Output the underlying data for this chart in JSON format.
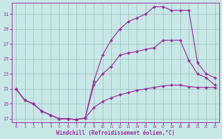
{
  "xlabel": "Windchill (Refroidissement éolien,°C)",
  "bg_color": "#c8e8e8",
  "line_color": "#993399",
  "grid_color": "#99bbbb",
  "xlim": [
    -0.5,
    23.5
  ],
  "ylim": [
    16.5,
    32.5
  ],
  "xticks": [
    0,
    1,
    2,
    3,
    4,
    5,
    6,
    7,
    8,
    9,
    10,
    11,
    12,
    13,
    14,
    15,
    16,
    17,
    18,
    19,
    20,
    21,
    22,
    23
  ],
  "yticks": [
    17,
    19,
    21,
    23,
    25,
    27,
    29,
    31
  ],
  "curve_bottom_x": [
    0,
    1,
    2,
    3,
    4,
    5,
    6,
    7,
    8,
    9,
    10,
    11,
    12,
    13,
    14,
    15,
    16,
    17,
    18,
    19,
    20,
    21,
    22,
    23
  ],
  "curve_bottom_y": [
    21.0,
    19.5,
    19.0,
    18.0,
    17.5,
    17.0,
    17.0,
    16.9,
    17.1,
    18.5,
    19.3,
    19.8,
    20.2,
    20.5,
    20.8,
    21.0,
    21.2,
    21.4,
    21.5,
    21.5,
    21.3,
    21.2,
    21.2,
    21.2
  ],
  "curve_mid_x": [
    0,
    1,
    2,
    3,
    4,
    5,
    6,
    7,
    8,
    9,
    10,
    11,
    12,
    13,
    14,
    15,
    16,
    17,
    18,
    19,
    20,
    21,
    22,
    23
  ],
  "curve_mid_y": [
    21.0,
    19.5,
    19.0,
    18.0,
    17.5,
    17.0,
    17.0,
    16.9,
    17.1,
    21.5,
    23.0,
    24.0,
    25.5,
    25.8,
    26.0,
    26.3,
    26.5,
    27.5,
    27.5,
    27.5,
    24.8,
    23.0,
    22.5,
    21.5
  ],
  "curve_top_x": [
    0,
    1,
    2,
    3,
    4,
    5,
    6,
    7,
    8,
    9,
    10,
    11,
    12,
    13,
    14,
    15,
    16,
    17,
    18,
    19,
    20,
    21,
    22,
    23
  ],
  "curve_top_y": [
    21.0,
    19.5,
    19.0,
    18.0,
    17.5,
    17.0,
    17.0,
    16.9,
    17.1,
    22.0,
    25.5,
    27.5,
    29.0,
    30.0,
    30.5,
    31.0,
    32.0,
    32.0,
    31.5,
    31.5,
    31.5,
    24.5,
    23.0,
    22.5
  ]
}
